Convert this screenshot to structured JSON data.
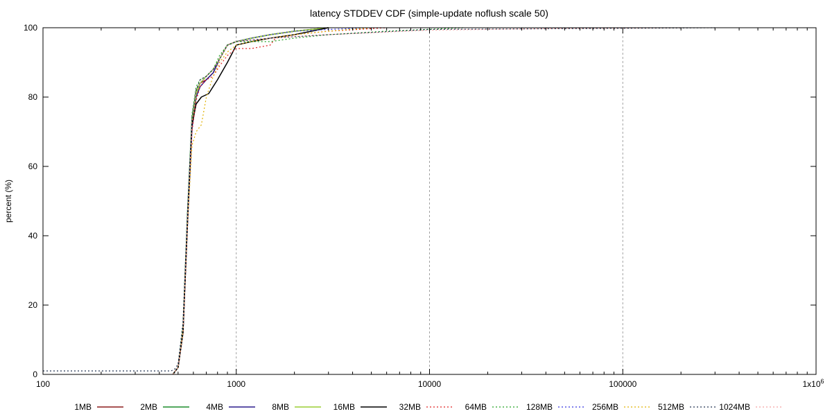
{
  "chart_data": {
    "type": "line",
    "title": "latency STDDEV CDF (simple-update noflush scale 50)",
    "xlabel": "",
    "ylabel": "percent (%)",
    "x_scale": "log",
    "xlim": [
      100,
      1000000
    ],
    "ylim": [
      0,
      100
    ],
    "grid": "x-major-dashed",
    "legend_placement": "bottom",
    "x_ticks": [
      {
        "value": 100,
        "label": "100"
      },
      {
        "value": 1000,
        "label": "1000"
      },
      {
        "value": 10000,
        "label": "10000"
      },
      {
        "value": 100000,
        "label": "100000"
      },
      {
        "value": 1000000,
        "label": "1x10",
        "sup": "6"
      }
    ],
    "y_ticks": [
      {
        "value": 0,
        "label": "0"
      },
      {
        "value": 20,
        "label": "20"
      },
      {
        "value": 40,
        "label": "40"
      },
      {
        "value": 60,
        "label": "60"
      },
      {
        "value": 80,
        "label": "80"
      },
      {
        "value": 100,
        "label": "100"
      }
    ],
    "series": [
      {
        "name": "1MB",
        "color": "#8b1a1a",
        "dash": "solid",
        "x": [
          470,
          500,
          530,
          560,
          590,
          620,
          650,
          700,
          760,
          820,
          900,
          1000,
          1200,
          1500,
          2000,
          3000
        ],
        "y": [
          0,
          2,
          12,
          45,
          72,
          81,
          84,
          85,
          87,
          91,
          95,
          96,
          97,
          98,
          99,
          100
        ]
      },
      {
        "name": "2MB",
        "color": "#1a8b2a",
        "dash": "solid",
        "x": [
          470,
          500,
          530,
          560,
          590,
          620,
          650,
          700,
          760,
          820,
          900,
          1000,
          1200,
          1500,
          2000,
          3000
        ],
        "y": [
          0,
          2,
          13,
          47,
          74,
          82,
          84,
          86,
          88,
          91,
          95,
          96,
          97,
          98,
          99,
          100
        ]
      },
      {
        "name": "4MB",
        "color": "#2a1a8b",
        "dash": "solid",
        "x": [
          470,
          500,
          530,
          560,
          590,
          620,
          650,
          700,
          760,
          820,
          900,
          1000,
          1200,
          1500,
          2000,
          3000
        ],
        "y": [
          0,
          2,
          12,
          44,
          71,
          80,
          83,
          85,
          87,
          91,
          95,
          96,
          97,
          98,
          99,
          100
        ]
      },
      {
        "name": "8MB",
        "color": "#9acd32",
        "dash": "solid",
        "x": [
          470,
          500,
          530,
          560,
          590,
          620,
          650,
          700,
          760,
          820,
          900,
          1000,
          1200,
          1500,
          2000,
          3000
        ],
        "y": [
          0,
          2,
          13,
          46,
          73,
          81,
          84,
          86,
          88,
          91,
          95,
          96,
          97,
          98,
          99,
          100
        ]
      },
      {
        "name": "16MB",
        "color": "#000000",
        "dash": "solid",
        "x": [
          470,
          500,
          530,
          560,
          590,
          620,
          660,
          720,
          800,
          900,
          960,
          1000,
          1200,
          1500,
          2000,
          3000
        ],
        "y": [
          0,
          2,
          12,
          45,
          72,
          78,
          80,
          81,
          85,
          90,
          93,
          95,
          96,
          97,
          98,
          100
        ]
      },
      {
        "name": "32MB",
        "color": "#e02020",
        "dash": "dotted",
        "x": [
          470,
          500,
          530,
          560,
          590,
          620,
          650,
          700,
          760,
          820,
          900,
          1000,
          1200,
          1500,
          1600,
          2000,
          3000,
          6000
        ],
        "y": [
          0,
          2,
          12,
          44,
          70,
          79,
          83,
          85,
          86,
          89,
          92,
          94,
          94,
          95,
          97,
          98,
          99,
          100
        ]
      },
      {
        "name": "64MB",
        "color": "#20a020",
        "dash": "dotted",
        "x": [
          470,
          500,
          530,
          560,
          590,
          620,
          650,
          700,
          760,
          820,
          900,
          1000,
          1500,
          2000,
          3000,
          6000,
          15000
        ],
        "y": [
          0,
          2,
          14,
          48,
          75,
          83,
          85,
          86,
          88,
          92,
          95,
          96,
          96,
          97,
          98,
          99,
          100
        ]
      },
      {
        "name": "128MB",
        "color": "#3030e0",
        "dash": "dotted",
        "x": [
          470,
          500,
          530,
          560,
          590,
          620,
          650,
          700,
          760,
          820,
          900,
          1000,
          1200,
          1500,
          2000,
          3000,
          5000
        ],
        "y": [
          0,
          2,
          13,
          46,
          73,
          82,
          84,
          86,
          88,
          91,
          95,
          96,
          97,
          98,
          99,
          99.5,
          100
        ]
      },
      {
        "name": "256MB",
        "color": "#e0b000",
        "dash": "dotted",
        "x": [
          470,
          500,
          530,
          560,
          590,
          620,
          660,
          700,
          760,
          820,
          900,
          1000,
          1200,
          1500,
          2000,
          3000,
          5000
        ],
        "y": [
          0,
          2,
          12,
          44,
          66,
          70,
          72,
          80,
          86,
          90,
          93,
          95,
          96,
          97,
          98,
          99,
          100
        ]
      },
      {
        "name": "512MB",
        "color": "#203050",
        "dash": "dotted",
        "x": [
          100,
          440,
          460,
          480,
          500,
          530,
          560,
          590,
          620,
          650,
          700,
          760,
          820,
          900,
          1000,
          1500,
          3000,
          10000,
          300000
        ],
        "y": [
          1,
          1,
          1,
          1.5,
          3,
          15,
          48,
          74,
          82,
          85,
          86,
          88,
          91,
          95,
          96,
          97,
          98,
          99.5,
          100
        ]
      },
      {
        "name": "1024MB",
        "color": "#f4a0a0",
        "dash": "dotted",
        "x": [
          470,
          500,
          530,
          560,
          590,
          620,
          650,
          700,
          760,
          820,
          900,
          1000,
          1500,
          3000,
          10000,
          50000,
          200000
        ],
        "y": [
          0,
          2,
          13,
          46,
          73,
          82,
          84,
          86,
          88,
          91,
          95,
          96,
          97,
          98,
          99.3,
          99.8,
          100
        ]
      }
    ]
  }
}
